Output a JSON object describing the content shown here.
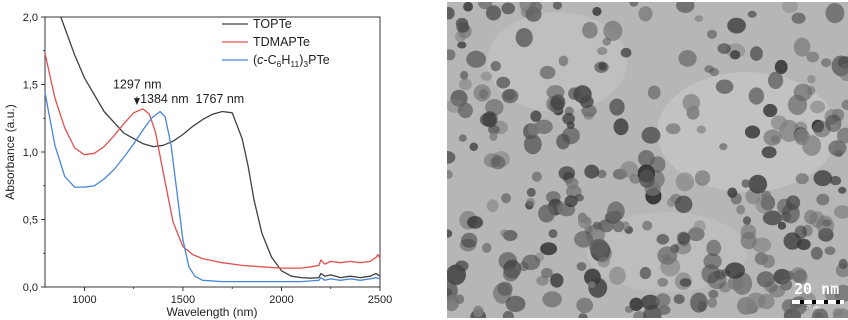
{
  "chart_data": {
    "type": "line",
    "xlabel": "Wavelength (nm)",
    "ylabel": "Absorbance (a.u.)",
    "xlim": [
      800,
      2500
    ],
    "ylim": [
      0.0,
      2.0
    ],
    "x_ticks": [
      1000,
      1500,
      2000,
      2500
    ],
    "y_ticks": [
      0.0,
      0.5,
      1.0,
      1.5,
      2.0
    ],
    "x_tick_labels": [
      "1000",
      "1500",
      "2000",
      "2500"
    ],
    "y_tick_labels": [
      "0,0",
      "0,5",
      "1,0",
      "1,5",
      "2,0"
    ],
    "legend_position": "top-right",
    "series": [
      {
        "name": "TOPTe",
        "color": "#404040",
        "x": [
          880,
          950,
          1000,
          1100,
          1200,
          1300,
          1350,
          1400,
          1450,
          1500,
          1550,
          1600,
          1650,
          1700,
          1750,
          1800,
          1830,
          1860,
          1900,
          1950,
          2000,
          2050,
          2100,
          2150,
          2190,
          2200,
          2220,
          2250,
          2300,
          2350,
          2400,
          2450,
          2480,
          2500
        ],
        "y": [
          2.0,
          1.72,
          1.55,
          1.3,
          1.14,
          1.06,
          1.04,
          1.05,
          1.08,
          1.13,
          1.19,
          1.24,
          1.28,
          1.3,
          1.29,
          1.1,
          0.9,
          0.65,
          0.4,
          0.22,
          0.12,
          0.08,
          0.07,
          0.065,
          0.07,
          0.1,
          0.08,
          0.09,
          0.07,
          0.08,
          0.07,
          0.08,
          0.1,
          0.08
        ]
      },
      {
        "name": "TDMAPTe",
        "color": "#e05050",
        "x": [
          800,
          850,
          900,
          950,
          1000,
          1050,
          1100,
          1150,
          1200,
          1250,
          1297,
          1330,
          1360,
          1400,
          1450,
          1500,
          1550,
          1600,
          1700,
          1800,
          1900,
          2000,
          2100,
          2150,
          2190,
          2200,
          2220,
          2250,
          2300,
          2350,
          2400,
          2450,
          2480,
          2490,
          2500
        ],
        "y": [
          1.73,
          1.4,
          1.18,
          1.03,
          0.98,
          0.99,
          1.04,
          1.12,
          1.21,
          1.29,
          1.32,
          1.28,
          1.15,
          0.85,
          0.48,
          0.3,
          0.24,
          0.21,
          0.18,
          0.16,
          0.15,
          0.14,
          0.14,
          0.15,
          0.16,
          0.2,
          0.17,
          0.19,
          0.18,
          0.19,
          0.18,
          0.19,
          0.22,
          0.24,
          0.21
        ]
      },
      {
        "name": "(c-C6H11)3PTe",
        "color": "#4a86d6",
        "x": [
          800,
          850,
          900,
          950,
          1000,
          1050,
          1100,
          1150,
          1200,
          1250,
          1300,
          1340,
          1384,
          1410,
          1440,
          1470,
          1500,
          1530,
          1560,
          1600,
          1700,
          1800,
          1900,
          2000,
          2100,
          2150,
          2190,
          2200,
          2220,
          2250,
          2300,
          2350,
          2400,
          2450,
          2480,
          2500
        ],
        "y": [
          1.44,
          1.05,
          0.82,
          0.74,
          0.74,
          0.75,
          0.8,
          0.87,
          0.96,
          1.06,
          1.17,
          1.25,
          1.3,
          1.26,
          1.05,
          0.7,
          0.35,
          0.15,
          0.08,
          0.05,
          0.04,
          0.04,
          0.04,
          0.04,
          0.04,
          0.045,
          0.05,
          0.07,
          0.05,
          0.06,
          0.05,
          0.06,
          0.05,
          0.06,
          0.07,
          0.06
        ]
      }
    ],
    "legend_labels": [
      {
        "plain": "TOPTe"
      },
      {
        "plain": "TDMAPTe"
      },
      {
        "pre": "(",
        "italic": "c",
        "mid": "-C",
        "sub1": "6",
        "h": "H",
        "sub2": "11",
        "close": ")",
        "sub3": "3",
        "post": "PTe"
      }
    ],
    "annotations": [
      {
        "text": "1297 nm",
        "x": 1297,
        "y": 1.32,
        "arrow": true
      },
      {
        "text": "1384 nm",
        "x": 1384,
        "y": 1.3,
        "arrow": false
      },
      {
        "text": "1767 nm",
        "x": 1767,
        "y": 1.3,
        "arrow": false
      }
    ]
  },
  "tem_image": {
    "scale_bar_label": "20 nm",
    "scale_bar_small_label": "20 nm"
  }
}
